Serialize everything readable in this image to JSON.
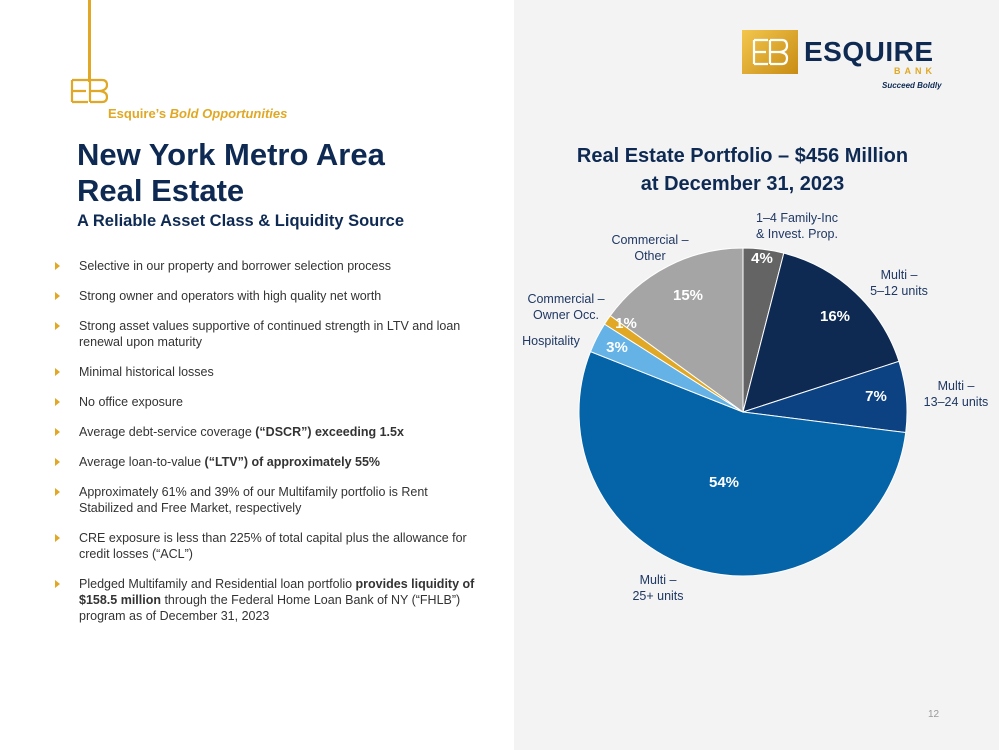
{
  "header": {
    "kicker_plain": "Esquire’s",
    "kicker_italic": "Bold Opportunities",
    "title_line1": "New York Metro Area",
    "title_line2": "Real Estate",
    "subtitle": "A Reliable Asset Class & Liquidity Source"
  },
  "logo": {
    "word": "ESQUIRE",
    "bank": "BANK",
    "tagline": "Succeed Boldly",
    "gold": "#e0a824",
    "navy": "#0e2a53"
  },
  "bullets": [
    {
      "pre": "Selective in our property and borrower selection process",
      "bold": "",
      "post": ""
    },
    {
      "pre": "Strong owner and operators with high quality net worth",
      "bold": "",
      "post": ""
    },
    {
      "pre": "Strong asset values supportive of continued strength in LTV and loan renewal upon maturity",
      "bold": "",
      "post": ""
    },
    {
      "pre": "Minimal historical losses",
      "bold": "",
      "post": ""
    },
    {
      "pre": "No office exposure",
      "bold": "",
      "post": ""
    },
    {
      "pre": "Average debt-service coverage ",
      "bold": "(“DSCR”) exceeding 1.5x",
      "post": ""
    },
    {
      "pre": "Average loan-to-value ",
      "bold": "(“LTV”) of approximately 55%",
      "post": ""
    },
    {
      "pre": "Approximately 61% and 39% of our Multifamily portfolio is Rent Stabilized and Free Market, respectively",
      "bold": "",
      "post": ""
    },
    {
      "pre": "CRE exposure is less than 225% of total capital plus the allowance for credit losses (“ACL”)",
      "bold": "",
      "post": ""
    },
    {
      "pre": "Pledged Multifamily and Residential loan portfolio ",
      "bold": "provides liquidity of $158.5 million",
      "post": " through the Federal Home Loan Bank of NY (“FHLB”) program as of December 31, 2023"
    }
  ],
  "chart_data": {
    "type": "pie",
    "title_line1": "Real Estate Portfolio – $456 Million",
    "title_line2": "at December 31, 2023",
    "slices": [
      {
        "label": "1–4 Family-Inc\n& Invest. Prop.",
        "value": 4,
        "display": "4%",
        "color": "#646464"
      },
      {
        "label": "Multi –\n5–12 units",
        "value": 16,
        "display": "16%",
        "color": "#0e2a53"
      },
      {
        "label": "Multi –\n13–24 units",
        "value": 7,
        "display": "7%",
        "color": "#0c4182"
      },
      {
        "label": "Multi –\n25+ units",
        "value": 54,
        "display": "54%",
        "color": "#0563a8"
      },
      {
        "label": "Hospitality",
        "value": 3,
        "display": "3%",
        "color": "#65b3e6"
      },
      {
        "label": "Commercial –\nOwner Occ.",
        "value": 1,
        "display": "1%",
        "color": "#e0a824"
      },
      {
        "label": "Commercial –\nOther",
        "value": 15,
        "display": "15%",
        "color": "#a5a5a5"
      }
    ]
  },
  "page_number": "12"
}
